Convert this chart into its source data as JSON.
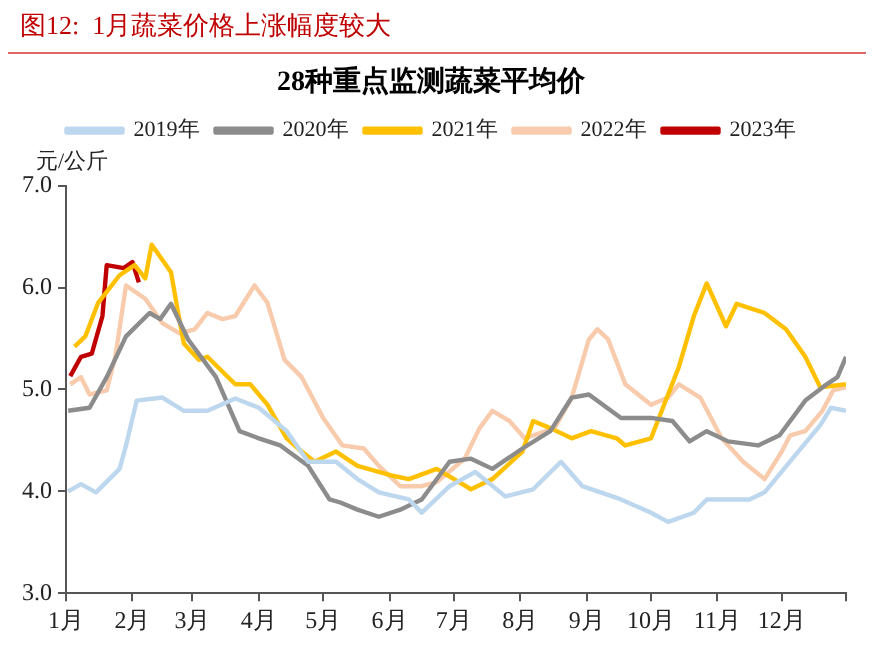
{
  "chart_data": {
    "type": "line",
    "title": "图12:  1月蔬菜价格上涨幅度较大",
    "subtitle": "28种重点监测蔬菜平均价",
    "ylabel": "元/公斤",
    "xlim": [
      "--01-01",
      "--12-31"
    ],
    "xticks": [
      {
        "value": "--01-01",
        "label": "1月"
      },
      {
        "value": "--02-01",
        "label": "2月"
      },
      {
        "value": "--03-01",
        "label": "3月"
      },
      {
        "value": "--04-01",
        "label": "4月"
      },
      {
        "value": "--05-01",
        "label": "5月"
      },
      {
        "value": "--06-01",
        "label": "6月"
      },
      {
        "value": "--07-01",
        "label": "7月"
      },
      {
        "value": "--08-01",
        "label": "8月"
      },
      {
        "value": "--09-01",
        "label": "9月"
      },
      {
        "value": "--10-01",
        "label": "10月"
      },
      {
        "value": "--11-01",
        "label": "11月"
      },
      {
        "value": "--12-01",
        "label": "12月"
      },
      {
        "value": "--12-31",
        "label": null
      }
    ],
    "ylim": [
      3,
      7
    ],
    "yticks": [
      {
        "value": 3,
        "label": "3.0"
      },
      {
        "value": 4,
        "label": "4.0"
      },
      {
        "value": 5,
        "label": "5.0"
      },
      {
        "value": 6,
        "label": "6.0"
      },
      {
        "value": 7,
        "label": "7.0"
      }
    ],
    "grid": false,
    "legend": "top",
    "marker": "none",
    "line_style": "solid",
    "series": [
      {
        "name": "2019年",
        "color": "#bdd7ee",
        "x": [
          "--01-02",
          "--01-08",
          "--01-15",
          "--01-26",
          "--01-29",
          "--02-03",
          "--02-15",
          "--02-25",
          "--03-08",
          "--03-21",
          "--04-01",
          "--04-14",
          "--04-24",
          "--05-07",
          "--05-17",
          "--05-27",
          "--06-10",
          "--06-16",
          "--06-29",
          "--07-11",
          "--07-25",
          "--08-07",
          "--08-20",
          "--08-30",
          "--09-17",
          "--10-01",
          "--10-09",
          "--10-21",
          "--10-27",
          "--11-16",
          "--11-23",
          "--12-06",
          "--12-19",
          "--12-24",
          "--12-31"
        ],
        "values": [
          4.0,
          4.07,
          3.99,
          4.22,
          4.45,
          4.89,
          4.92,
          4.79,
          4.79,
          4.91,
          4.82,
          4.59,
          4.29,
          4.29,
          4.12,
          3.99,
          3.92,
          3.79,
          4.05,
          4.19,
          3.95,
          4.02,
          4.29,
          4.05,
          3.92,
          3.79,
          3.7,
          3.79,
          3.92,
          3.92,
          3.99,
          4.32,
          4.65,
          4.82,
          4.79
        ]
      },
      {
        "name": "2020年",
        "color": "#8c8c8c",
        "x": [
          "--01-02",
          "--01-12",
          "--01-20",
          "--01-29",
          "--02-09",
          "--02-14",
          "--02-19",
          "--02-27",
          "--03-12",
          "--03-23",
          "--04-01",
          "--04-11",
          "--04-24",
          "--05-04",
          "--05-09",
          "--05-17",
          "--05-27",
          "--06-06",
          "--06-16",
          "--06-29",
          "--07-09",
          "--07-19",
          "--08-02",
          "--08-15",
          "--08-25",
          "--09-02",
          "--09-17",
          "--10-01",
          "--10-11",
          "--10-19",
          "--10-27",
          "--11-06",
          "--11-20",
          "--11-30",
          "--12-12",
          "--12-22",
          "--12-27",
          "--12-31"
        ],
        "values": [
          4.79,
          4.82,
          5.12,
          5.52,
          5.75,
          5.69,
          5.84,
          5.49,
          5.12,
          4.59,
          4.52,
          4.45,
          4.25,
          3.92,
          3.89,
          3.82,
          3.75,
          3.82,
          3.92,
          4.29,
          4.32,
          4.22,
          4.42,
          4.59,
          4.92,
          4.95,
          4.72,
          4.72,
          4.69,
          4.49,
          4.59,
          4.49,
          4.45,
          4.55,
          4.89,
          5.05,
          5.12,
          5.32
        ]
      },
      {
        "name": "2021年",
        "color": "#ffc000",
        "x": [
          "--01-05",
          "--01-10",
          "--01-16",
          "--01-26",
          "--02-02",
          "--02-07",
          "--02-10",
          "--02-19",
          "--02-22",
          "--02-25",
          "--03-04",
          "--03-08",
          "--03-21",
          "--03-28",
          "--04-05",
          "--04-14",
          "--04-21",
          "--04-27",
          "--05-07",
          "--05-17",
          "--05-27",
          "--06-03",
          "--06-10",
          "--06-23",
          "--07-09",
          "--07-19",
          "--08-02",
          "--08-07",
          "--08-15",
          "--08-25",
          "--09-03",
          "--09-15",
          "--09-19",
          "--10-01",
          "--10-14",
          "--10-21",
          "--10-27",
          "--11-05",
          "--11-10",
          "--11-23",
          "--12-03",
          "--12-12",
          "--12-19",
          "--12-31"
        ],
        "values": [
          5.42,
          5.52,
          5.85,
          6.12,
          6.22,
          6.09,
          6.42,
          6.15,
          5.79,
          5.45,
          5.29,
          5.32,
          5.05,
          5.05,
          4.85,
          4.52,
          4.39,
          4.29,
          4.39,
          4.25,
          4.19,
          4.15,
          4.12,
          4.22,
          4.02,
          4.12,
          4.39,
          4.69,
          4.62,
          4.52,
          4.59,
          4.52,
          4.45,
          4.52,
          5.22,
          5.72,
          6.04,
          5.62,
          5.84,
          5.75,
          5.59,
          5.32,
          5.02,
          5.05
        ]
      },
      {
        "name": "2022年",
        "color": "#f8cbad",
        "x": [
          "--01-03",
          "--01-08",
          "--01-12",
          "--01-20",
          "--01-24",
          "--01-29",
          "--02-07",
          "--02-15",
          "--02-23",
          "--03-02",
          "--03-08",
          "--03-15",
          "--03-21",
          "--03-30",
          "--04-05",
          "--04-13",
          "--04-21",
          "--05-01",
          "--05-10",
          "--05-20",
          "--05-27",
          "--06-06",
          "--06-16",
          "--06-23",
          "--07-06",
          "--07-13",
          "--07-19",
          "--07-27",
          "--08-03",
          "--08-17",
          "--08-25",
          "--09-02",
          "--09-06",
          "--09-11",
          "--09-19",
          "--10-01",
          "--10-09",
          "--10-14",
          "--10-24",
          "--11-03",
          "--11-13",
          "--11-23",
          "--12-01",
          "--12-05",
          "--12-12",
          "--12-20",
          "--12-25",
          "--12-31"
        ],
        "values": [
          5.05,
          5.12,
          4.95,
          4.99,
          5.32,
          6.02,
          5.89,
          5.65,
          5.55,
          5.59,
          5.75,
          5.69,
          5.72,
          6.02,
          5.85,
          5.29,
          5.12,
          4.72,
          4.45,
          4.42,
          4.25,
          4.05,
          4.05,
          4.09,
          4.32,
          4.62,
          4.79,
          4.69,
          4.52,
          4.62,
          4.92,
          5.49,
          5.59,
          5.49,
          5.05,
          4.85,
          4.92,
          5.05,
          4.92,
          4.52,
          4.29,
          4.12,
          4.39,
          4.55,
          4.59,
          4.79,
          4.99,
          5.02
        ]
      },
      {
        "name": "2023年",
        "color": "#c00000",
        "x": [
          "--01-03",
          "--01-08",
          "--01-13",
          "--01-18",
          "--01-20",
          "--01-28",
          "--02-01",
          "--02-04"
        ],
        "values": [
          5.13,
          5.32,
          5.35,
          5.72,
          6.22,
          6.19,
          6.25,
          6.05
        ]
      }
    ]
  }
}
